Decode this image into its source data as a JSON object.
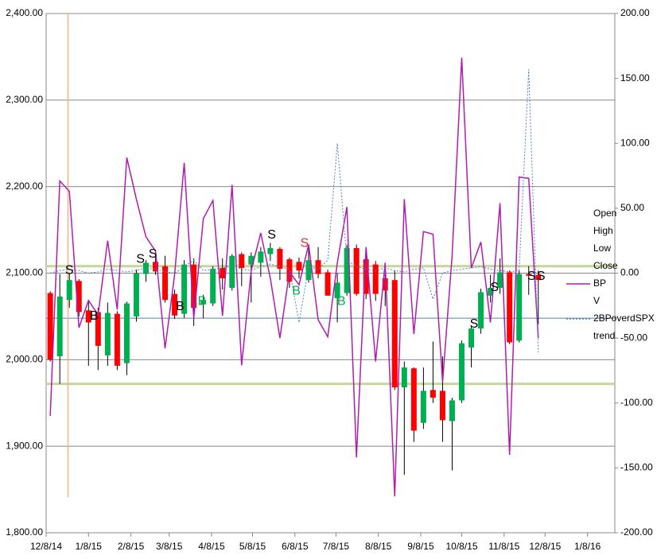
{
  "chart_data": {
    "type": "candlestick",
    "x": [
      "12/11/14",
      "12/18/14",
      "12/25/14",
      "1/1/15",
      "1/8/15",
      "1/15/15",
      "1/22/15",
      "1/29/15",
      "2/5/15",
      "2/12/15",
      "2/19/15",
      "2/26/15",
      "3/5/15",
      "3/12/15",
      "3/19/15",
      "3/26/15",
      "4/2/15",
      "4/9/15",
      "4/16/15",
      "4/23/15",
      "4/30/15",
      "5/7/15",
      "5/14/15",
      "5/21/15",
      "5/28/15",
      "6/4/15",
      "6/11/15",
      "6/18/15",
      "6/25/15",
      "7/2/15",
      "7/9/15",
      "7/16/15",
      "7/23/15",
      "7/30/15",
      "8/6/15",
      "8/13/15",
      "8/20/15",
      "8/27/15",
      "9/3/15",
      "9/10/15",
      "9/17/15",
      "9/24/15",
      "10/1/15",
      "10/8/15",
      "10/15/15",
      "10/22/15",
      "10/29/15",
      "11/5/15",
      "11/12/15",
      "11/19/15",
      "11/26/15",
      "12/3/15"
    ],
    "up_color": "#00b050",
    "down_color": "#ff0000",
    "series": [
      {
        "name": "Open",
        "values": [
          2077,
          2004,
          2069,
          2091,
          2057,
          2055,
          2005,
          2053,
          1996,
          2050,
          2099,
          2113,
          2108,
          2076,
          2053,
          2110,
          2064,
          2065,
          2106,
          2083,
          2122,
          2110,
          2112,
          2122,
          2128,
          2116,
          2113,
          2092,
          2115,
          2101,
          2071,
          2077,
          2129,
          2116,
          2110,
          2094,
          2092,
          1968,
          1990,
          1927,
          1965,
          1964,
          1929,
          1953,
          2014,
          2036,
          2074,
          2083,
          2101,
          2022,
          2099,
          2098
        ]
      },
      {
        "name": "High",
        "values": [
          2079,
          2099,
          2100,
          2093,
          2068,
          2060,
          2066,
          2056,
          2067,
          2104,
          2115,
          2120,
          2120,
          2081,
          2115,
          2117,
          2075,
          2108,
          2117,
          2122,
          2124,
          2124,
          2130,
          2135,
          2130,
          2118,
          2118,
          2130,
          2130,
          2104,
          2100,
          2133,
          2133,
          2120,
          2114,
          2099,
          2103,
          1998,
          1991,
          1991,
          2021,
          2004,
          1956,
          2022,
          2038,
          2082,
          2098,
          2117,
          2103,
          2103,
          2108,
          2103
        ]
      },
      {
        "name": "Low",
        "values": [
          1998,
          1972,
          2060,
          2050,
          1993,
          1988,
          1993,
          1988,
          1982,
          2044,
          2090,
          2098,
          2066,
          2047,
          2048,
          2039,
          2048,
          2062,
          2081,
          2080,
          2085,
          2066,
          2096,
          2114,
          2092,
          2083,
          2094,
          2089,
          2094,
          2074,
          2043,
          2074,
          2074,
          2070,
          2068,
          2062,
          1965,
          1867,
          1905,
          1920,
          1950,
          1905,
          1872,
          1950,
          1991,
          2030,
          2066,
          2076,
          2018,
          2020,
          2075,
          2041
        ]
      },
      {
        "name": "Close",
        "values": [
          2000,
          2073,
          2092,
          2055,
          2043,
          2016,
          2054,
          1993,
          2065,
          2100,
          2112,
          2102,
          2069,
          2051,
          2110,
          2060,
          2069,
          2105,
          2094,
          2120,
          2106,
          2120,
          2125,
          2129,
          2105,
          2090,
          2103,
          2115,
          2099,
          2074,
          2089,
          2129,
          2076,
          2076,
          2076,
          2080,
          1968,
          1991,
          1918,
          1964,
          1956,
          1930,
          1953,
          2019,
          2036,
          2078,
          2083,
          2101,
          2020,
          2099,
          2097,
          2092
        ]
      },
      {
        "name": "BP",
        "color": "#b01cb0",
        "axis": "y2",
        "values": [
          -110,
          71,
          63,
          -42,
          -21,
          -32,
          25,
          -28,
          89,
          57,
          28,
          17,
          -58,
          -1,
          85,
          -35,
          42,
          56,
          -33,
          68,
          -71,
          2,
          31,
          -4,
          -50,
          1,
          -9,
          22,
          -36,
          -49,
          8,
          51,
          -142,
          20,
          -68,
          8,
          -172,
          57,
          -47,
          32,
          30,
          -84,
          14,
          166,
          4,
          24,
          -38,
          54,
          -140,
          74,
          73,
          -50
        ]
      },
      {
        "name": "V",
        "color": "#f4b183",
        "x": [
          "12/24/14",
          "12/24/14"
        ],
        "values": [
          1841,
          2400
        ]
      },
      {
        "name": "2BPoverdSPX",
        "color": "#4f81bd",
        "dashed": true,
        "axis": "y2",
        "values": [
          0,
          2,
          3,
          2,
          0,
          1,
          3,
          2,
          1,
          2,
          4,
          3,
          1,
          0,
          5,
          10,
          2,
          3,
          4,
          6,
          3,
          2,
          5,
          7,
          5,
          3,
          -38,
          5,
          3,
          10,
          100,
          10,
          5,
          3,
          2,
          4,
          2,
          1,
          3,
          4,
          -20,
          0,
          2,
          3,
          4,
          5,
          3,
          2,
          1,
          2,
          157,
          -61
        ]
      },
      {
        "name": "trend",
        "levels": [
          2108,
          2048,
          1972
        ],
        "colors": [
          "#c4d79b",
          "#4f81bd",
          "#c4d79b"
        ]
      }
    ],
    "xlim": [
      "12/8/14",
      "1/28/16"
    ],
    "xticks": [
      "12/8/14",
      "1/8/15",
      "2/8/15",
      "3/8/15",
      "4/8/15",
      "5/8/15",
      "6/8/15",
      "7/8/15",
      "8/8/15",
      "9/8/15",
      "10/8/15",
      "11/8/15",
      "12/8/15",
      "1/8/16"
    ],
    "ylim": [
      1800,
      2400
    ],
    "yticks": [
      {
        "value": 1800,
        "label": "1,800.00"
      },
      {
        "value": 1900,
        "label": "1,900.00"
      },
      {
        "value": 2000,
        "label": "2,000.00"
      },
      {
        "value": 2100,
        "label": "2,100.00"
      },
      {
        "value": 2200,
        "label": "2,200.00"
      },
      {
        "value": 2300,
        "label": "2,300.00"
      },
      {
        "value": 2400,
        "label": "2,400.00"
      }
    ],
    "y2lim": [
      -200,
      200
    ],
    "y2ticks": [
      {
        "value": -200,
        "label": "-200.00"
      },
      {
        "value": -150,
        "label": "-150.00"
      },
      {
        "value": -100,
        "label": "-100.00"
      },
      {
        "value": -50,
        "label": "-50.00"
      },
      {
        "value": 0,
        "label": "0.00"
      },
      {
        "value": 50,
        "label": "50.00"
      },
      {
        "value": 100,
        "label": "100.00"
      },
      {
        "value": 150,
        "label": "150.00"
      },
      {
        "value": 200,
        "label": "200.00"
      }
    ],
    "grid": true,
    "legend": "right",
    "annotations": [
      {
        "text": "S",
        "x": "12/25/14",
        "y": 2103,
        "color": "#000000"
      },
      {
        "text": "B",
        "x": "1/12/15",
        "y": 2050,
        "color": "#000000"
      },
      {
        "text": "S",
        "x": "2/15/15",
        "y": 2116,
        "color": "#000000"
      },
      {
        "text": "S",
        "x": "2/24/15",
        "y": 2122,
        "color": "#000000"
      },
      {
        "text": "B",
        "x": "3/16/15",
        "y": 2061,
        "color": "#000000"
      },
      {
        "text": "B",
        "x": "4/1/15",
        "y": 2067,
        "color": "#00b050"
      },
      {
        "text": "S",
        "x": "5/22/15",
        "y": 2144,
        "color": "#000000"
      },
      {
        "text": "B",
        "x": "6/9/15",
        "y": 2079,
        "color": "#00b050"
      },
      {
        "text": "S",
        "x": "6/15/15",
        "y": 2134,
        "color": "#e03030"
      },
      {
        "text": "B",
        "x": "7/12/15",
        "y": 2067,
        "color": "#00b050"
      },
      {
        "text": "S",
        "x": "10/17/15",
        "y": 2041,
        "color": "#000000"
      },
      {
        "text": "S",
        "x": "11/1/15",
        "y": 2083,
        "color": "#000000"
      },
      {
        "text": "S",
        "x": "11/28/15",
        "y": 2096,
        "color": "#000000"
      },
      {
        "text": "S",
        "x": "12/5/15",
        "y": 2096,
        "color": "#000000"
      }
    ]
  }
}
